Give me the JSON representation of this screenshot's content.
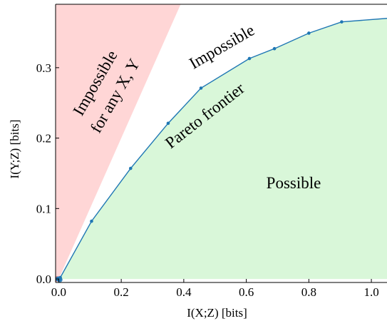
{
  "chart_data": {
    "type": "line",
    "xlabel": "I(X;Z) [bits]",
    "ylabel": "I(Y;Z) [bits]",
    "xlim": [
      -0.01,
      1.05
    ],
    "ylim": [
      -0.005,
      0.39
    ],
    "x_ticks": [
      {
        "value": 0.0,
        "label": "0.0"
      },
      {
        "value": 0.2,
        "label": "0.2"
      },
      {
        "value": 0.4,
        "label": "0.4"
      },
      {
        "value": 0.6,
        "label": "0.6"
      },
      {
        "value": 0.8,
        "label": "0.8"
      },
      {
        "value": 1.0,
        "label": "1.0"
      }
    ],
    "y_ticks": [
      {
        "value": 0.0,
        "label": "0.0"
      },
      {
        "value": 0.1,
        "label": "0.1"
      },
      {
        "value": 0.2,
        "label": "0.2"
      },
      {
        "value": 0.3,
        "label": "0.3"
      }
    ],
    "grid": false,
    "series": [
      {
        "points": [
          {
            "x": 0.0,
            "y": 0.0
          },
          {
            "x": 0.005,
            "y": 0.002
          },
          {
            "x": 0.105,
            "y": 0.082
          },
          {
            "x": 0.23,
            "y": 0.157
          },
          {
            "x": 0.35,
            "y": 0.221
          },
          {
            "x": 0.455,
            "y": 0.271
          },
          {
            "x": 0.61,
            "y": 0.313
          },
          {
            "x": 0.69,
            "y": 0.327
          },
          {
            "x": 0.8,
            "y": 0.349
          },
          {
            "x": 0.905,
            "y": 0.365
          },
          {
            "x": 1.05,
            "y": 0.37
          }
        ],
        "line_color": "#1f77b4"
      }
    ],
    "cluster_points": [
      {
        "x": -0.006,
        "y": 0.0
      },
      {
        "x": -0.002,
        "y": 0.0
      },
      {
        "x": 0.0,
        "y": 0.0
      },
      {
        "x": 0.002,
        "y": 0.0
      },
      {
        "x": 0.004,
        "y": -0.001
      }
    ],
    "impossible_any_boundary": {
      "x_top": 0.39,
      "y_top": 0.39
    },
    "regions": {
      "impossible_any": {
        "label_line1": "Impossible",
        "label_line2": "for any X, Y",
        "color": "#ffd6d6"
      },
      "impossible": {
        "label": "Impossible"
      },
      "pareto": {
        "label": "Pareto frontier"
      },
      "possible": {
        "label": "Possible",
        "color": "#d9f7d9"
      }
    }
  }
}
